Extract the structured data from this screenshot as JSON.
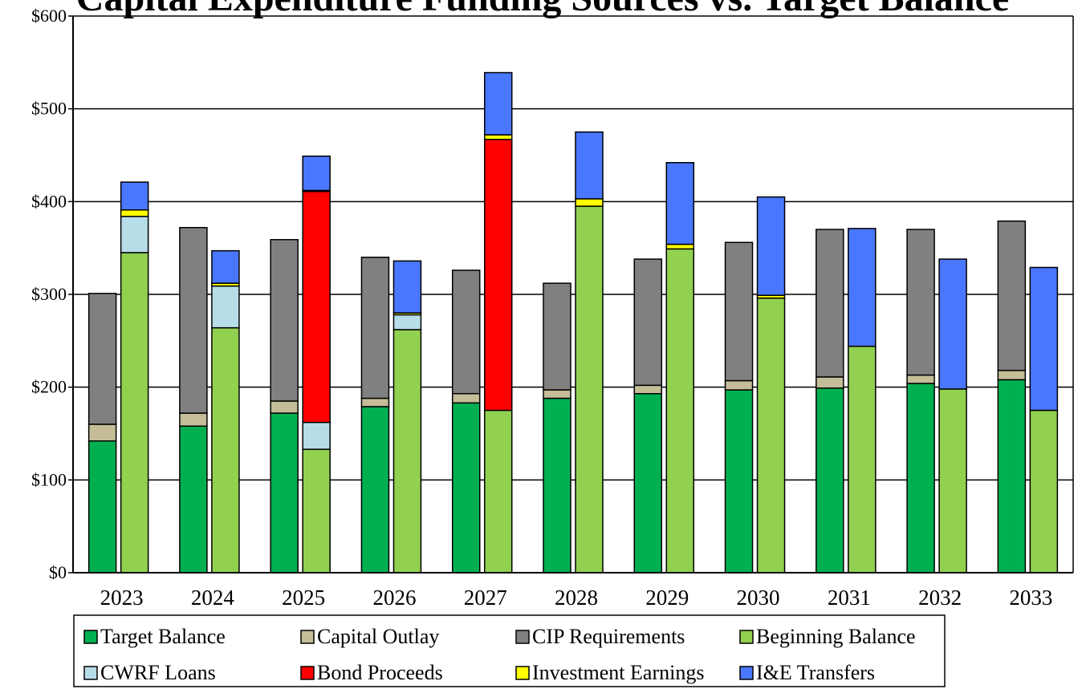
{
  "chart_data": {
    "type": "bar",
    "title": "Capital Expenditure Funding Sources vs. Target Balance",
    "categories": [
      "2023",
      "2024",
      "2025",
      "2026",
      "2027",
      "2028",
      "2029",
      "2030",
      "2031",
      "2032",
      "2033"
    ],
    "ylim": [
      0,
      600
    ],
    "yticks": [
      0,
      100,
      200,
      300,
      400,
      500,
      600
    ],
    "ytick_labels": [
      "$0",
      "$100",
      "$200",
      "$300",
      "$400",
      "$500",
      "$600"
    ],
    "grid": true,
    "legend_position": "bottom",
    "stacks": [
      {
        "name": "requirements",
        "series": [
          {
            "name": "Target Balance",
            "color": "#00B050",
            "values": [
              142,
              158,
              172,
              179,
              183,
              188,
              193,
              197,
              199,
              204,
              208
            ]
          },
          {
            "name": "Capital Outlay",
            "color": "#C4BD97",
            "values": [
              18,
              14,
              13,
              9,
              10,
              9,
              9,
              10,
              12,
              9,
              10
            ]
          },
          {
            "name": "CIP Requirements",
            "color": "#808080",
            "values": [
              141,
              200,
              174,
              152,
              133,
              115,
              136,
              149,
              159,
              157,
              161
            ]
          }
        ]
      },
      {
        "name": "sources",
        "series": [
          {
            "name": "Beginning Balance",
            "color": "#92D050",
            "values": [
              345,
              264,
              133,
              262,
              175,
              395,
              349,
              296,
              244,
              198,
              175
            ]
          },
          {
            "name": "CWRF Loans",
            "color": "#B7DEE8",
            "values": [
              39,
              45,
              29,
              16,
              0,
              0,
              0,
              0,
              0,
              0,
              0
            ]
          },
          {
            "name": "Bond Proceeds",
            "color": "#FF0000",
            "values": [
              0,
              0,
              249,
              0,
              292,
              0,
              0,
              0,
              0,
              0,
              0
            ]
          },
          {
            "name": "Investment Earnings",
            "color": "#FFFF00",
            "values": [
              7,
              3,
              1,
              2,
              5,
              8,
              5,
              3,
              0,
              0,
              0
            ]
          },
          {
            "name": "I&E Transfers",
            "color": "#4A77FF",
            "values": [
              30,
              35,
              37,
              56,
              67,
              72,
              88,
              106,
              127,
              140,
              154
            ]
          }
        ]
      }
    ],
    "legend": [
      {
        "label": "Target Balance",
        "color": "#00B050"
      },
      {
        "label": "Capital Outlay",
        "color": "#C4BD97"
      },
      {
        "label": "CIP Requirements",
        "color": "#808080"
      },
      {
        "label": "Beginning Balance",
        "color": "#92D050"
      },
      {
        "label": "CWRF Loans",
        "color": "#B7DEE8"
      },
      {
        "label": "Bond Proceeds",
        "color": "#FF0000"
      },
      {
        "label": "Investment Earnings",
        "color": "#FFFF00"
      },
      {
        "label": "I&E Transfers",
        "color": "#4A77FF"
      }
    ]
  }
}
